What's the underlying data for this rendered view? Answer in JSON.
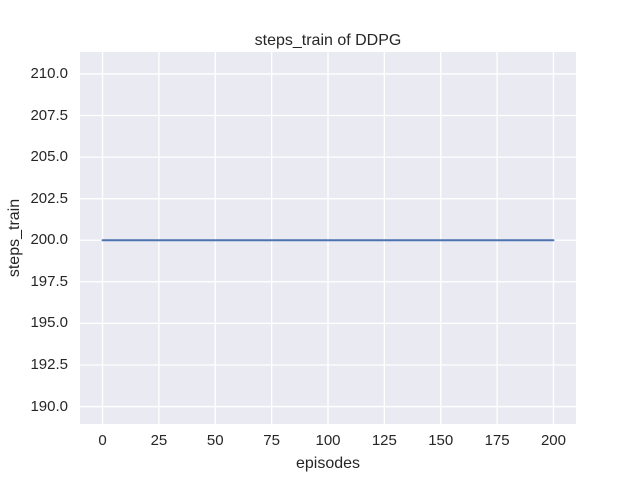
{
  "figure": {
    "title": "steps_train of DDPG",
    "xlabel": "episodes",
    "ylabel": "steps_train"
  },
  "colors": {
    "figure_bg": "#ffffff",
    "axes_bg": "#eaeaf2",
    "grid": "#ffffff",
    "line": "#4c72b0",
    "text": "#262626"
  },
  "chart_data": {
    "type": "line",
    "title": "steps_train of DDPG",
    "xlabel": "episodes",
    "ylabel": "steps_train",
    "grid": true,
    "legend": false,
    "xlim": [
      -10,
      210
    ],
    "ylim": [
      188.95,
      211.32
    ],
    "xticks": [
      0,
      25,
      50,
      75,
      100,
      125,
      150,
      175,
      200
    ],
    "xtick_labels": [
      "0",
      "25",
      "50",
      "75",
      "100",
      "125",
      "150",
      "175",
      "200"
    ],
    "yticks": [
      190.0,
      192.5,
      195.0,
      197.5,
      200.0,
      202.5,
      205.0,
      207.5,
      210.0
    ],
    "ytick_labels": [
      "190.0",
      "192.5",
      "195.0",
      "197.5",
      "200.0",
      "202.5",
      "205.0",
      "207.5",
      "210.0"
    ],
    "series": [
      {
        "name": "steps_train",
        "color": "#4c72b0",
        "x": [
          0,
          200
        ],
        "y": [
          200,
          200
        ],
        "description": "constant steps_train value of 200 for every episode from 0 to 200"
      }
    ]
  }
}
